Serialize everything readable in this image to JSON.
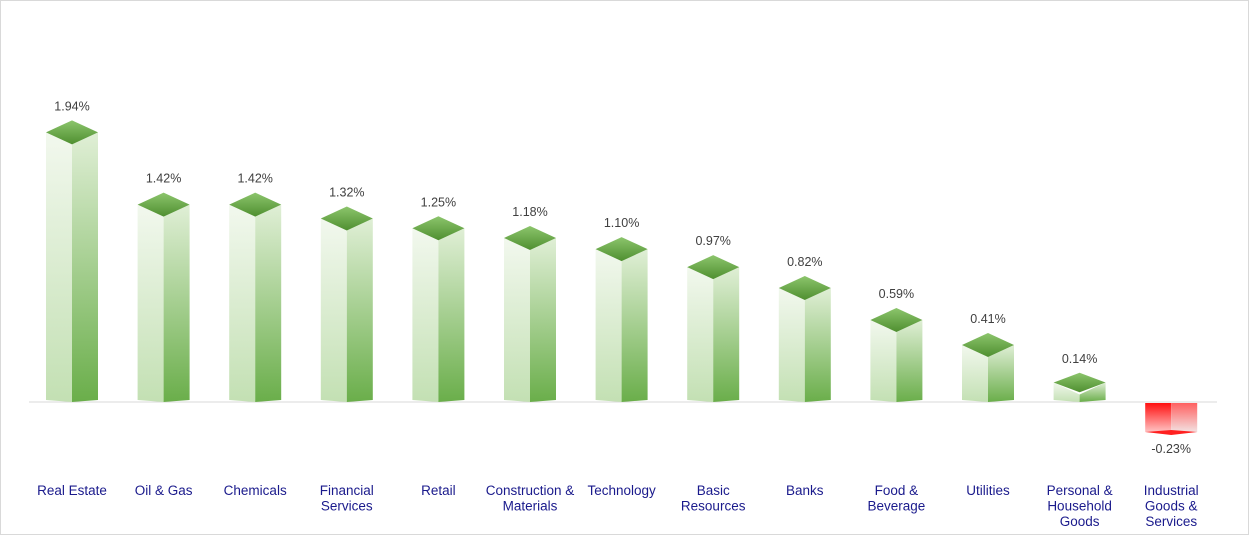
{
  "chart_data": {
    "type": "bar",
    "title": "",
    "xlabel": "",
    "ylabel": "",
    "grid": false,
    "legend": "none",
    "categories": [
      [
        "Real Estate"
      ],
      [
        "Oil & Gas"
      ],
      [
        "Chemicals"
      ],
      [
        "Financial",
        "Services"
      ],
      [
        "Retail"
      ],
      [
        "Construction &",
        "Materials"
      ],
      [
        "Technology"
      ],
      [
        "Basic",
        "Resources"
      ],
      [
        "Banks"
      ],
      [
        "Food &",
        "Beverage"
      ],
      [
        "Utilities"
      ],
      [
        "Personal &",
        "Household",
        "Goods"
      ],
      [
        "Industrial",
        "Goods &",
        "Services"
      ]
    ],
    "values": [
      1.94,
      1.42,
      1.42,
      1.32,
      1.25,
      1.18,
      1.1,
      0.97,
      0.82,
      0.59,
      0.41,
      0.14,
      -0.23
    ],
    "labels": [
      "1.94%",
      "1.42%",
      "1.42%",
      "1.32%",
      "1.25%",
      "1.18%",
      "1.10%",
      "0.97%",
      "0.82%",
      "0.59%",
      "0.41%",
      "0.14%",
      "-0.23%"
    ],
    "ylim": [
      -0.6,
      2.9
    ],
    "colors": {
      "positive": "#6aa84f",
      "negative": "#ff0000",
      "category_text": "#1a1a8c",
      "value_text": "#404040"
    }
  }
}
